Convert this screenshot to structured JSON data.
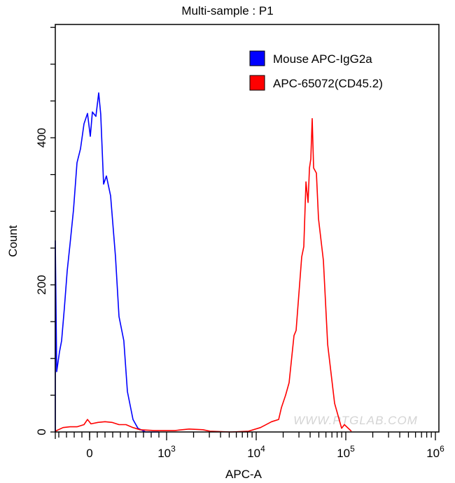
{
  "chart_data": {
    "type": "line",
    "title": "Multi-sample : P1",
    "xlabel": "APC-A",
    "ylabel": "Count",
    "x_scale": "biexponential",
    "xlim": [
      -445,
      1100000
    ],
    "ylim": [
      0,
      554
    ],
    "x_tick_labels": [
      {
        "value": 0,
        "base": "0",
        "exp": ""
      },
      {
        "value": 1000,
        "base": "10",
        "exp": "3"
      },
      {
        "value": 10000,
        "base": "10",
        "exp": "4"
      },
      {
        "value": 100000,
        "base": "10",
        "exp": "5"
      },
      {
        "value": 1000000,
        "base": "10",
        "exp": "6"
      }
    ],
    "y_tick_labels": [
      0,
      200,
      400
    ],
    "grid": false,
    "legend_position": "top-right",
    "watermark": "WWW.PTGLAB.COM",
    "series": [
      {
        "name": "Mouse APC-IgG2a",
        "color": "#0000ff",
        "x": [
          -445,
          -445,
          -427,
          -391,
          -364,
          -327,
          -291,
          -255,
          -209,
          -164,
          -118,
          -73,
          -27,
          9,
          36,
          82,
          118,
          145,
          182,
          218,
          273,
          336,
          382,
          445,
          491,
          564,
          627,
          727,
          900
        ],
        "y": [
          0,
          260,
          82,
          109,
          124,
          169,
          219,
          255,
          302,
          366,
          385,
          419,
          433,
          402,
          435,
          429,
          461,
          432,
          337,
          348,
          321,
          238,
          157,
          124,
          55,
          17,
          5,
          0,
          0
        ]
      },
      {
        "name": "APC-65072(CD45.2)",
        "color": "#ff0000",
        "x": [
          -445,
          -345,
          -255,
          -164,
          -73,
          -27,
          18,
          109,
          200,
          291,
          382,
          473,
          564,
          655,
          836,
          1240,
          1780,
          2550,
          3050,
          5230,
          8200,
          11150,
          14860,
          17800,
          19100,
          21300,
          23300,
          26400,
          27900,
          32200,
          34000,
          35900,
          37900,
          39300,
          40700,
          42200,
          43700,
          47000,
          49600,
          56200,
          62700,
          75000,
          89800,
          96400,
          115500
        ],
        "y": [
          1,
          6,
          7,
          7,
          10,
          17,
          11,
          13,
          14,
          13,
          10,
          10,
          6,
          3,
          2,
          2,
          4,
          3,
          1,
          0,
          1,
          6,
          14,
          17,
          33,
          50,
          67,
          131,
          138,
          238,
          252,
          340,
          312,
          359,
          371,
          426,
          359,
          352,
          290,
          233,
          119,
          39,
          5,
          10,
          1
        ]
      }
    ]
  }
}
